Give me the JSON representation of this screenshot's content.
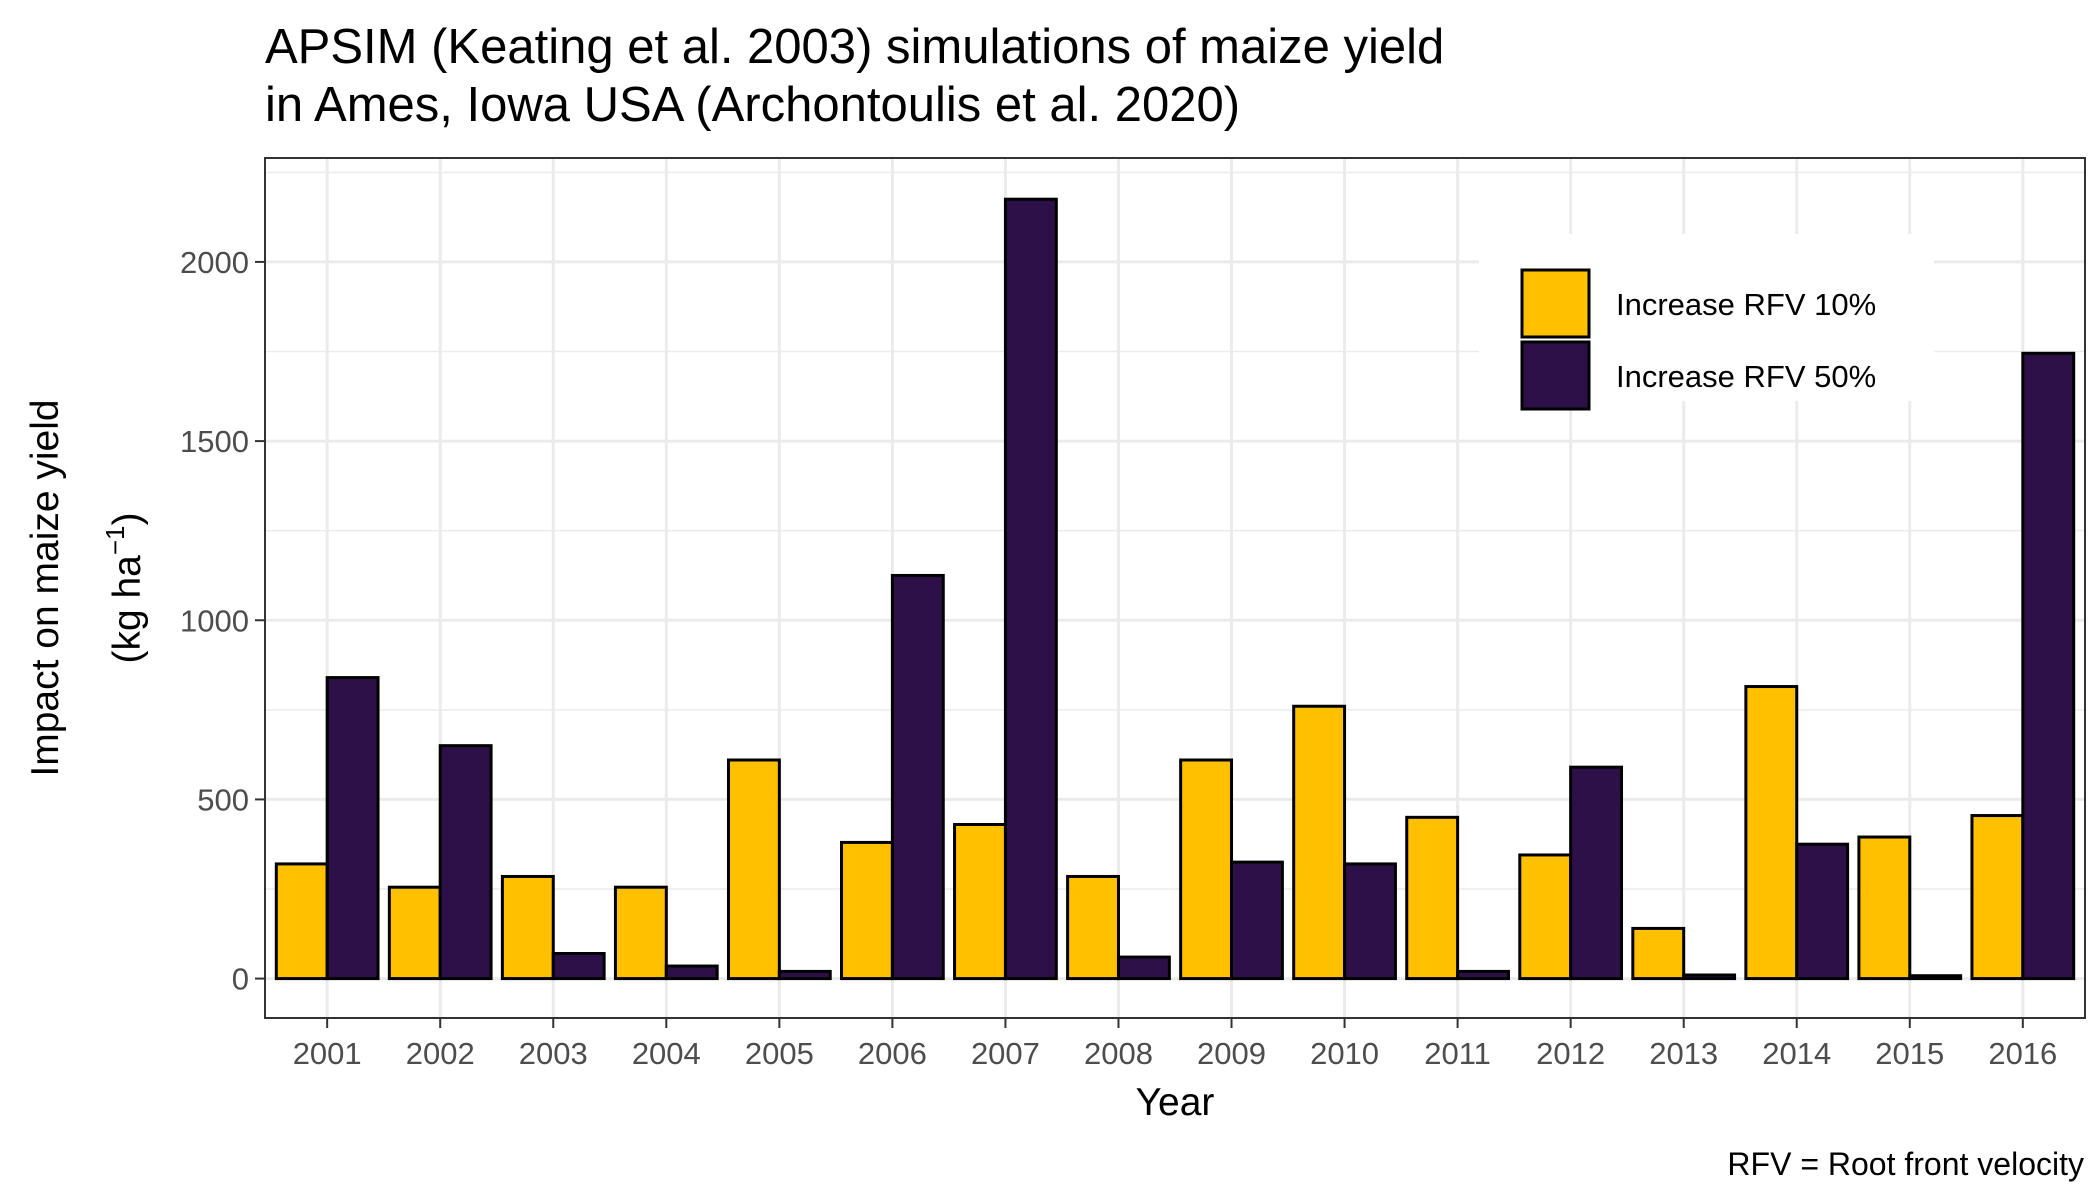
{
  "title_lines": [
    "APSIM (Keating et al. 2003) simulations of maize yield",
    "in Ames, Iowa USA (Archontoulis et al. 2020)"
  ],
  "caption": "RFV = Root front velocity",
  "colors": {
    "series_1": "#FFC000",
    "series_2": "#2E1048",
    "grid": "#EBEBEB",
    "border": "#333333",
    "tick_text": "#4D4D4D"
  },
  "chart_data": {
    "type": "bar",
    "categories": [
      "2001",
      "2002",
      "2003",
      "2004",
      "2005",
      "2006",
      "2007",
      "2008",
      "2009",
      "2010",
      "2011",
      "2012",
      "2013",
      "2014",
      "2015",
      "2016"
    ],
    "series": [
      {
        "name": "Increase RFV 10%",
        "values": [
          320,
          255,
          285,
          255,
          610,
          380,
          430,
          285,
          610,
          760,
          450,
          345,
          140,
          815,
          395,
          455
        ]
      },
      {
        "name": "Increase RFV 50%",
        "values": [
          840,
          650,
          70,
          35,
          20,
          1125,
          2175,
          60,
          325,
          320,
          20,
          590,
          10,
          375,
          8,
          1745
        ]
      }
    ],
    "xlabel": "Year",
    "ylabel_line1": "Impact on maize yield",
    "ylabel_line2_main": "(kg  ha",
    "ylabel_line2_sup": "−1",
    "ylabel_line2_close": ")",
    "yticks": [
      0,
      500,
      1000,
      1500,
      2000
    ],
    "ylim": [
      -110,
      2290
    ],
    "grid": true,
    "legend_position": "top-right"
  }
}
